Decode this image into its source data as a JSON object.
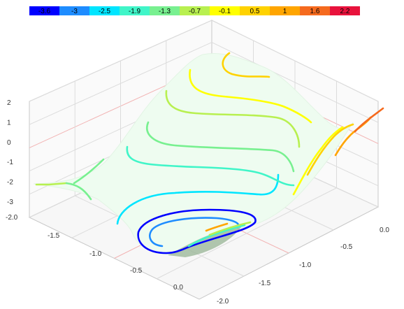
{
  "chart_data": {
    "type": "surface-contour-3d",
    "title": "",
    "legend": {
      "placement": "top",
      "levels": [
        {
          "label": "-3.6",
          "color": "#0000ff"
        },
        {
          "label": "-3",
          "color": "#1e8cff"
        },
        {
          "label": "-2.5",
          "color": "#00e5ff"
        },
        {
          "label": "-1.9",
          "color": "#40f5c8"
        },
        {
          "label": "-1.3",
          "color": "#78f090"
        },
        {
          "label": "-0.7",
          "color": "#b8f050"
        },
        {
          "label": "-0.1",
          "color": "#ffff00"
        },
        {
          "label": "0.5",
          "color": "#ffd200"
        },
        {
          "label": "1",
          "color": "#ffa500"
        },
        {
          "label": "1.6",
          "color": "#f56a1e"
        },
        {
          "label": "2.2",
          "color": "#e8123c"
        }
      ]
    },
    "z_axis": {
      "ticks": [
        "2",
        "1",
        "0",
        "-1",
        "-2",
        "-3"
      ],
      "range": [
        -3.6,
        2.2
      ]
    },
    "x_axis": {
      "ticks": [
        "-2.0",
        "-1.5",
        "-1.0",
        "-0.5",
        "0.0"
      ],
      "range": [
        -2.0,
        0.0
      ]
    },
    "y_axis": {
      "ticks": [
        "0.0",
        "-0.5",
        "-1.0",
        "-1.5",
        "-2.0"
      ],
      "range": [
        -2.0,
        0.0
      ]
    },
    "grid": true,
    "surface_color": "#eefcf0"
  }
}
